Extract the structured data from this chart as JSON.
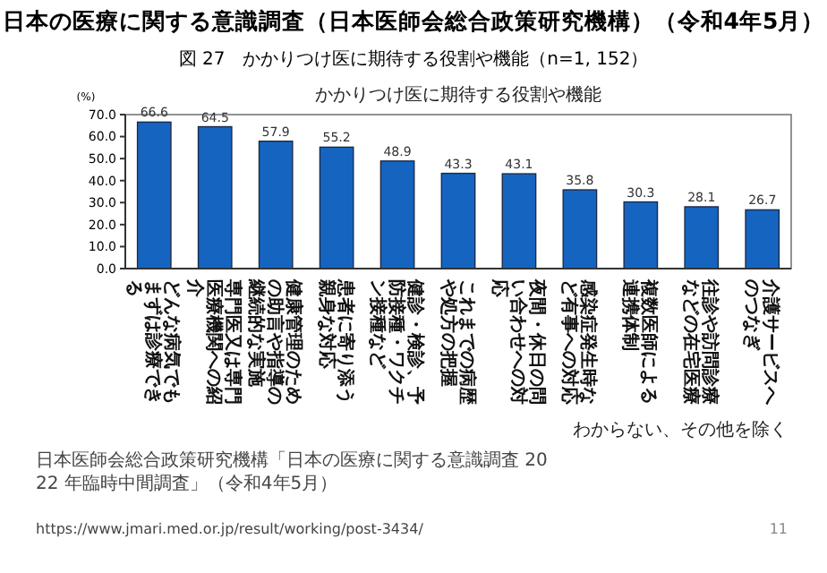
{
  "chart_data": {
    "type": "bar",
    "title": "日本の医療に関する意識調査（日本医師会総合政策研究機構）（令和4年5月）",
    "subtitle": "図 27　かかりつけ医に期待する役割や機能（n=1, 152）",
    "ylabel": "(%)",
    "categories": [
      "どんな病気でもまずは診療できる",
      "専門医又は専門医療機関への紹介",
      "健康管理のための助言や指導の継続的な実施",
      "患者に寄り添う親身な対応",
      "健診・検診、予防接種・ワクチン接種など",
      "これまでの病歴や処方の把握",
      "夜間・休日の問い合わせへの対応",
      "感染症発生時など有事への対応",
      "複数医師による連携体制",
      "往診や訪問診療などの在宅医療",
      "介護サービスへのつなぎ"
    ],
    "values": [
      66.6,
      64.5,
      57.9,
      55.2,
      48.9,
      43.3,
      43.1,
      35.8,
      30.3,
      28.1,
      26.7
    ],
    "color": "#1565c0",
    "data_labels": true,
    "ylim": [
      0,
      70
    ],
    "yticks": [
      {
        "value": 0,
        "label": "0.0"
      },
      {
        "value": 10,
        "label": "10.0"
      },
      {
        "value": 20,
        "label": "20.0"
      },
      {
        "value": 30,
        "label": "30.0"
      },
      {
        "value": 40,
        "label": "40.0"
      },
      {
        "value": 50,
        "label": "50.0"
      },
      {
        "value": 60,
        "label": "60.0"
      },
      {
        "value": 70,
        "label": "70.0"
      }
    ],
    "annotations": [
      "かかりつけ医に期待する役割や機能",
      "わからない、その他を除く",
      "日本医師会総合政策研究機構「日本の医療に関する意識調査 2022 年臨時中間調査」（令和4年5月）",
      "https://www.jmari.med.or.jp/result/working/post-3434/",
      "11"
    ]
  }
}
